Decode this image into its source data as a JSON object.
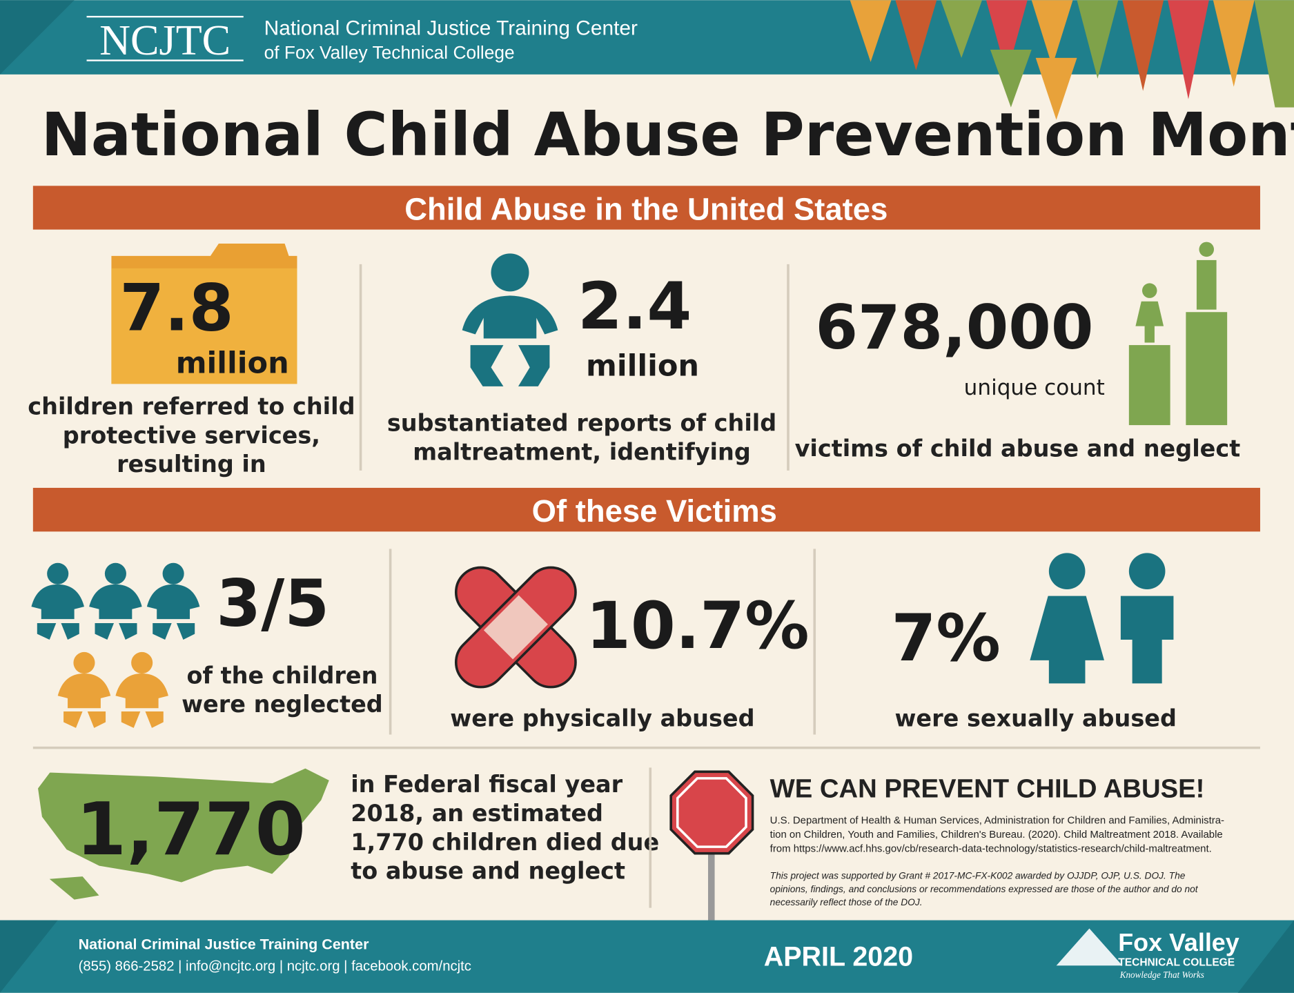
{
  "header": {
    "logo": "NCJTC",
    "org_name": "National Criminal Justice Training Center",
    "org_sub": "of Fox Valley Technical College"
  },
  "title": "National Child Abuse Prevention Month",
  "section1": {
    "heading": "Child Abuse in the United States",
    "stats": [
      {
        "value": "7.8",
        "unit": "million",
        "lines": [
          "children referred to child",
          "protective services,",
          "resulting in"
        ]
      },
      {
        "value": "2.4",
        "unit": "million",
        "lines": [
          "substantiated reports of child",
          "maltreatment, identifying"
        ]
      },
      {
        "value": "678,000",
        "unit": "unique count",
        "lines": [
          "victims of child abuse and neglect"
        ]
      }
    ]
  },
  "section2": {
    "heading": "Of these Victims",
    "stats": [
      {
        "value": "3/5",
        "lines": [
          "of the children",
          "were neglected"
        ]
      },
      {
        "value": "10.7%",
        "lines": [
          "were physically abused"
        ]
      },
      {
        "value": "7%",
        "lines": [
          "were sexually abused"
        ]
      }
    ]
  },
  "deaths": {
    "value": "1,770",
    "lines": [
      "in Federal fiscal year",
      "2018, an estimated",
      "1,770 children died due",
      "to abuse and neglect"
    ]
  },
  "prevent": {
    "heading": "WE CAN PREVENT CHILD ABUSE!",
    "citation": [
      "U.S. Department of Health & Human Services, Administration for Children and Families, Administra-",
      "tion on Children, Youth and Families, Children's Bureau. (2020). Child Maltreatment 2018. Available",
      "from https://www.acf.hhs.gov/cb/research-data-technology/statistics-research/child-maltreatment."
    ],
    "grant": [
      "This project was supported by Grant # 2017-MC-FX-K002 awarded by OJJDP, OJP, U.S. DOJ. The",
      "opinions, findings, and conclusions or recommendations expressed are those of the author and do not",
      "necessarily reflect those of the DOJ."
    ]
  },
  "footer": {
    "org": "National Criminal Justice Training Center",
    "contacts": "(855) 866-2582 | info@ncjtc.org | ncjtc.org | facebook.com/ncjtc",
    "date": "APRIL 2020",
    "college_name": "Fox Valley",
    "college_sub": "TECHNICAL COLLEGE",
    "college_tagline": "Knowledge That Works"
  }
}
